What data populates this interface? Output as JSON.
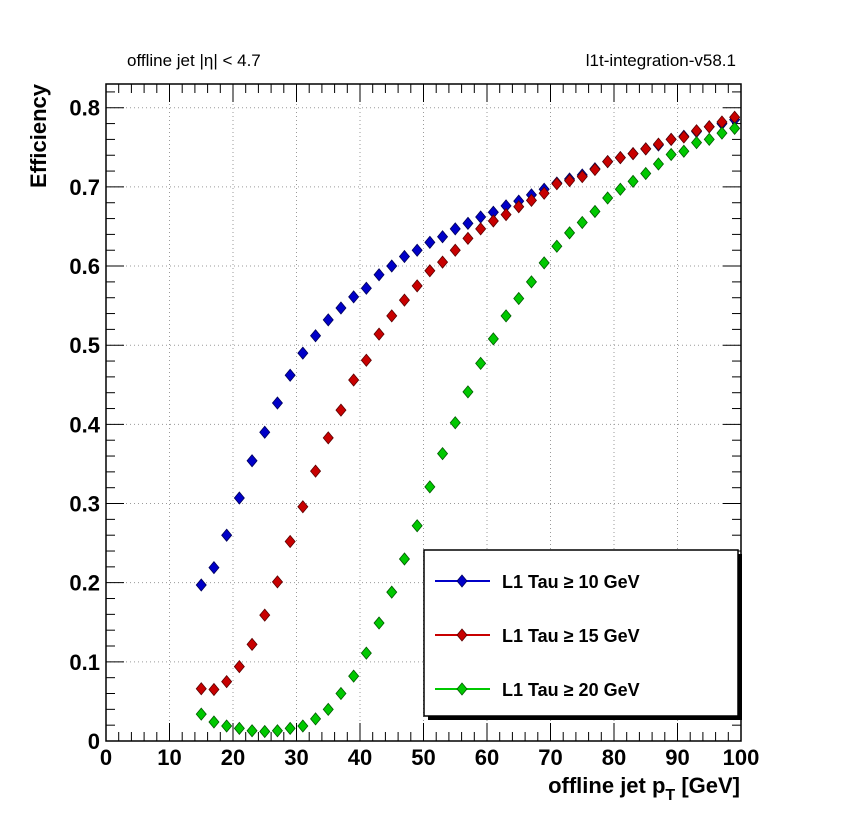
{
  "header": {
    "left": "offline jet |η| < 4.7",
    "right": "l1t-integration-v58.1"
  },
  "chart_data": {
    "type": "scatter",
    "xlabel_main": "offline jet p",
    "xlabel_sub": "T",
    "xlabel_unit": " [GeV]",
    "ylabel": "Efficiency",
    "xlim": [
      0,
      100
    ],
    "ylim": [
      0,
      0.83
    ],
    "x_ticks": [
      0,
      10,
      20,
      30,
      40,
      50,
      60,
      70,
      80,
      90,
      100
    ],
    "x_tick_labels": [
      "0",
      "10",
      "20",
      "30",
      "40",
      "50",
      "60",
      "70",
      "80",
      "90",
      "100"
    ],
    "y_ticks": [
      0,
      0.1,
      0.2,
      0.3,
      0.4,
      0.5,
      0.6,
      0.7,
      0.8
    ],
    "y_tick_labels": [
      "0",
      "0.1",
      "0.2",
      "0.3",
      "0.4",
      "0.5",
      "0.6",
      "0.7",
      "0.8"
    ],
    "grid": true,
    "legend_position": "bottom-right",
    "x": [
      15,
      17,
      19,
      21,
      23,
      25,
      27,
      29,
      31,
      33,
      35,
      37,
      39,
      41,
      43,
      45,
      47,
      49,
      51,
      53,
      55,
      57,
      59,
      61,
      63,
      65,
      67,
      69,
      71,
      73,
      75,
      77,
      79,
      81,
      83,
      85,
      87,
      89,
      91,
      93,
      95,
      97,
      99
    ],
    "series": [
      {
        "name": "L1 Tau ≥ 10 GeV",
        "color": "#0000c8",
        "values": [
          0.197,
          0.219,
          0.26,
          0.307,
          0.354,
          0.39,
          0.427,
          0.462,
          0.49,
          0.512,
          0.532,
          0.547,
          0.561,
          0.572,
          0.589,
          0.6,
          0.612,
          0.62,
          0.63,
          0.637,
          0.647,
          0.654,
          0.662,
          0.668,
          0.676,
          0.682,
          0.69,
          0.697,
          0.705,
          0.71,
          0.715,
          0.723,
          0.732,
          0.737,
          0.742,
          0.748,
          0.753,
          0.76,
          0.764,
          0.77,
          0.776,
          0.78,
          0.785
        ]
      },
      {
        "name": "L1 Tau ≥ 15 GeV",
        "color": "#c80000",
        "values": [
          0.066,
          0.065,
          0.075,
          0.094,
          0.122,
          0.159,
          0.201,
          0.252,
          0.296,
          0.341,
          0.383,
          0.418,
          0.456,
          0.481,
          0.514,
          0.537,
          0.557,
          0.575,
          0.594,
          0.605,
          0.62,
          0.635,
          0.647,
          0.657,
          0.665,
          0.675,
          0.683,
          0.692,
          0.704,
          0.708,
          0.713,
          0.722,
          0.732,
          0.737,
          0.742,
          0.748,
          0.754,
          0.76,
          0.763,
          0.771,
          0.776,
          0.782,
          0.788
        ]
      },
      {
        "name": "L1 Tau ≥ 20 GeV",
        "color": "#00c800",
        "values": [
          0.034,
          0.024,
          0.019,
          0.016,
          0.013,
          0.012,
          0.013,
          0.016,
          0.019,
          0.028,
          0.04,
          0.06,
          0.082,
          0.111,
          0.149,
          0.188,
          0.23,
          0.272,
          0.321,
          0.363,
          0.402,
          0.441,
          0.477,
          0.508,
          0.537,
          0.559,
          0.58,
          0.604,
          0.625,
          0.642,
          0.655,
          0.669,
          0.686,
          0.697,
          0.707,
          0.717,
          0.729,
          0.741,
          0.745,
          0.756,
          0.76,
          0.768,
          0.774
        ]
      }
    ]
  }
}
